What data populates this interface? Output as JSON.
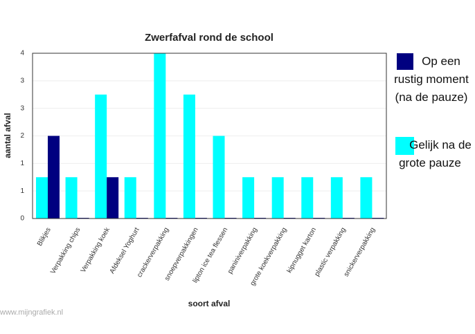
{
  "chart_data": {
    "type": "bar",
    "title": "Zwerfafval rond de school",
    "x_label": "soort afval",
    "y_label": "aantal afval",
    "watermark": "www.mijngrafiek.nl",
    "categories": [
      "Blikjes",
      "Verpakking chips",
      "Verpakking koek",
      "Afdeksel Yoghurt",
      "crackerverpakking",
      "snoepverpakkingen",
      "lipton ice tea flessen",
      "paniniverpakking",
      "grote koekverpakking",
      "kipnugget karton",
      "plastic verpakking",
      "snickerverpakking"
    ],
    "series": [
      {
        "name": "Gelijk na de grote pauze",
        "color": "#00ffff",
        "values": [
          1,
          1,
          3,
          1,
          4,
          3,
          2,
          1,
          1,
          1,
          1,
          1
        ]
      },
      {
        "name": "Op een rustig moment (na de pauze)",
        "color": "#000080",
        "values": [
          2,
          0,
          1,
          0,
          0,
          0,
          0,
          0,
          0,
          0,
          0,
          0
        ]
      }
    ],
    "legend_order": [
      1,
      0
    ],
    "ylim": [
      0,
      4
    ],
    "yticks": [
      0,
      {
        "value": 0.6667,
        "label": "1"
      },
      {
        "value": 1.3333,
        "label": "1"
      },
      2,
      {
        "value": 2.6667,
        "label": "3"
      },
      {
        "value": 3.3333,
        "label": "3"
      },
      4
    ],
    "grid": true
  }
}
